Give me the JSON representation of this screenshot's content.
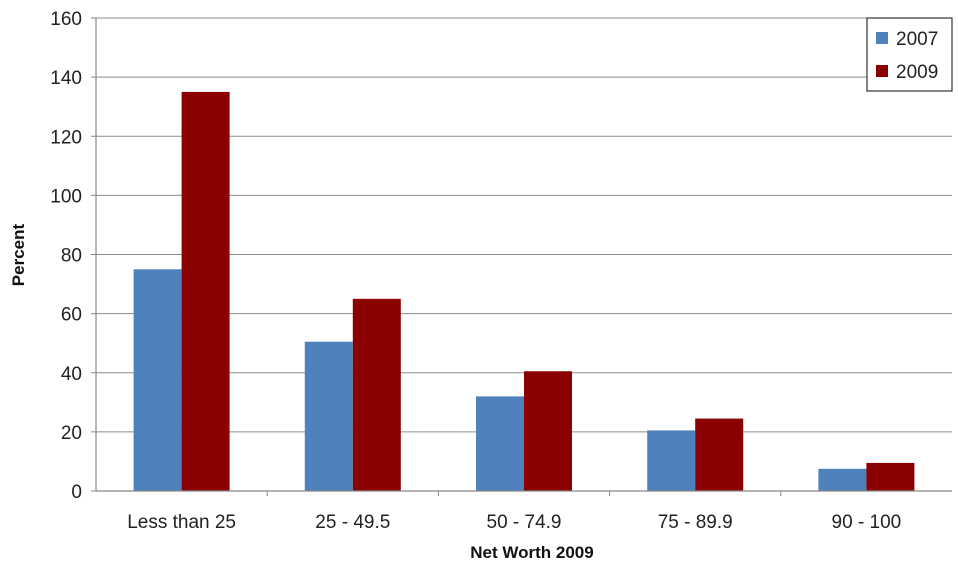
{
  "chart_data": {
    "type": "bar",
    "title": "",
    "xlabel": "Net Worth 2009",
    "ylabel": "Percent",
    "categories": [
      "Less than 25",
      "25 - 49.5",
      "50 - 74.9",
      "75 - 89.9",
      "90 - 100"
    ],
    "series": [
      {
        "name": "2007",
        "color": "#4f81bd",
        "values": [
          75,
          50.5,
          32,
          20.5,
          7.5
        ]
      },
      {
        "name": "2009",
        "color": "#8b0000",
        "values": [
          135,
          65,
          40.5,
          24.5,
          9.5
        ]
      }
    ],
    "ylim": [
      0,
      160
    ],
    "yticks": [
      0,
      20,
      40,
      60,
      80,
      100,
      120,
      140,
      160
    ],
    "grid": true,
    "legend": "top-right"
  }
}
